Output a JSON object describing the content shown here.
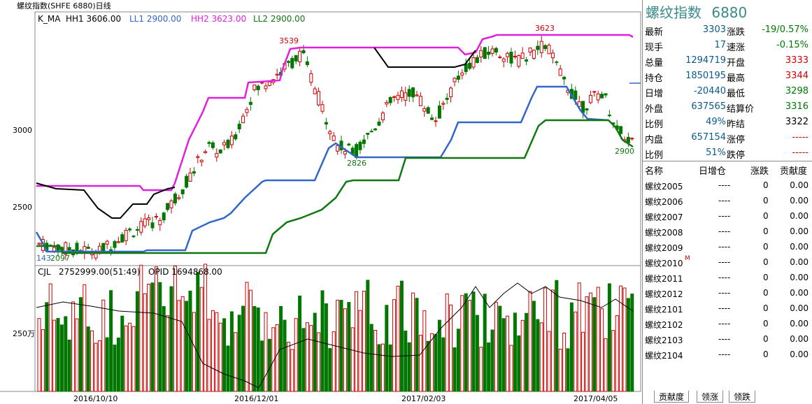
{
  "title": "螺纹指数(SHFE 6880)日线",
  "legend_top": {
    "kma": "K_MA",
    "hh1": "HH1 3606.00",
    "ll1": "LL1 2900.00",
    "hh2": "HH2 3623.00",
    "ll2": "LL2 2900.00"
  },
  "y_ticks": [
    "3000",
    "2500"
  ],
  "vol_tick": "250万",
  "vol_legend": {
    "cjl": "CJL",
    "cjl_val": "2752999.00(51:49)",
    "opid": "OPID 1694868.00"
  },
  "x_ticks": [
    "2016/10/10",
    "2016/12/01",
    "2017/02/03",
    "2017/04/05"
  ],
  "annotations": {
    "a1": "3539",
    "a2": "3623",
    "a3": "2826",
    "a4": "2900",
    "a5": "143",
    "a6": "2097"
  },
  "colors": {
    "up": "#cc0000",
    "down": "#007700",
    "magenta": "#e020e0",
    "blue": "#3366cc",
    "green": "#117711",
    "black": "#000000"
  },
  "side": {
    "title": "螺纹指数",
    "code": "6880",
    "quote_rows": [
      {
        "l": "最新",
        "v": "3303",
        "r": "涨跌",
        "rv": "-19/0.57%",
        "rc": "#007700"
      },
      {
        "l": "现手",
        "v": "17",
        "r": "速涨",
        "rv": "-0.15%",
        "rc": "#007700"
      },
      {
        "l": "总量",
        "v": "1294719",
        "r": "开盘",
        "rv": "3333",
        "rc": "#cc0000"
      },
      {
        "l": "持仓",
        "v": "1850195",
        "r": "最高",
        "rv": "3344",
        "rc": "#cc0000"
      },
      {
        "l": "日增",
        "v": "-20440",
        "r": "最低",
        "rv": "3298",
        "rc": "#007700"
      },
      {
        "l": "外盘",
        "v": "637565",
        "r": "结算价",
        "rv": "3316",
        "rc": "#007700"
      },
      {
        "l": "比例",
        "v": "49%",
        "r": "昨结",
        "rv": "3322",
        "rc": "#000000"
      },
      {
        "l": "内盘",
        "v": "657154",
        "r": "涨停",
        "rv": "-----",
        "rc": "#cc0000"
      },
      {
        "l": "比例",
        "v": "51%",
        "r": "跌停",
        "rv": "-----",
        "rc": "#cc0000"
      }
    ],
    "list_headers": [
      "名称",
      "日增仓",
      "涨跌",
      "贡献度"
    ],
    "list": [
      {
        "name": "螺纹2005",
        "inc": "----",
        "chg": "0",
        "con": "0.00"
      },
      {
        "name": "螺纹2006",
        "inc": "----",
        "chg": "0",
        "con": "0.00"
      },
      {
        "name": "螺纹2007",
        "inc": "----",
        "chg": "0",
        "con": "0.00"
      },
      {
        "name": "螺纹2008",
        "inc": "----",
        "chg": "0",
        "con": "0.00"
      },
      {
        "name": "螺纹2009",
        "inc": "----",
        "chg": "0",
        "con": "0.00"
      },
      {
        "name": "螺纹2010",
        "inc": "----",
        "chg": "0",
        "con": "0.00",
        "mark": "M"
      },
      {
        "name": "螺纹2011",
        "inc": "----",
        "chg": "0",
        "con": "0.00"
      },
      {
        "name": "螺纹2012",
        "inc": "----",
        "chg": "0",
        "con": "0.00"
      },
      {
        "name": "螺纹2101",
        "inc": "----",
        "chg": "0",
        "con": "0.00"
      },
      {
        "name": "螺纹2102",
        "inc": "----",
        "chg": "0",
        "con": "0.00"
      },
      {
        "name": "螺纹2103",
        "inc": "----",
        "chg": "0",
        "con": "0.00"
      },
      {
        "name": "螺纹2104",
        "inc": "----",
        "chg": "0",
        "con": "0.00"
      }
    ],
    "tabs": [
      "贡献度",
      "领涨",
      "领跌"
    ]
  }
}
